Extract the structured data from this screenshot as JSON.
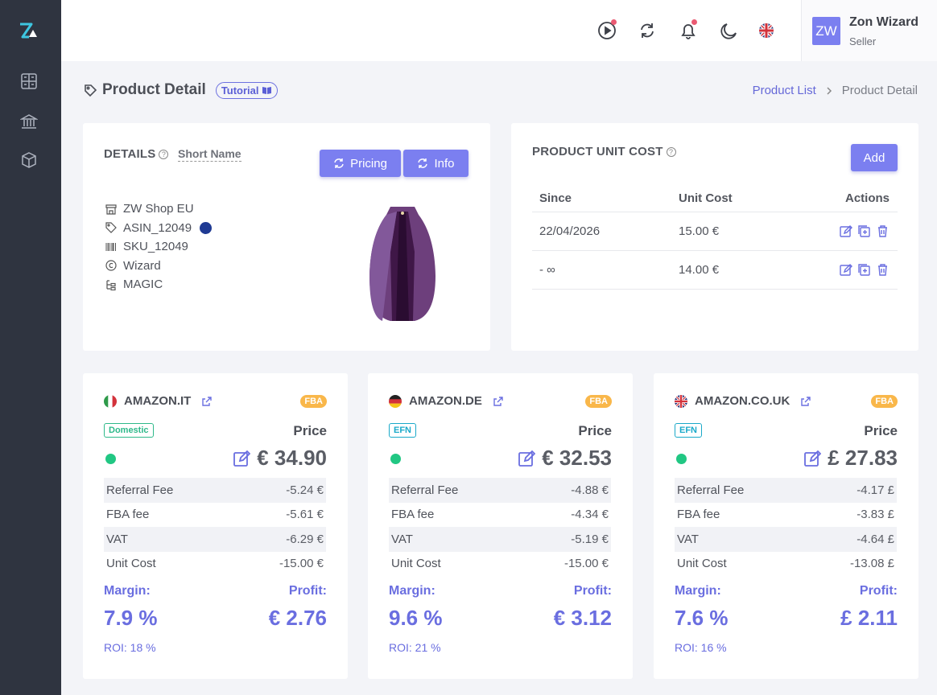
{
  "sidebar": {
    "logo": "logo-icon",
    "items": [
      "dashboard-icon",
      "bank-icon",
      "box-icon"
    ]
  },
  "header": {
    "icons": [
      "play-icon",
      "sync-icon",
      "bell-icon",
      "moon-icon",
      "uk-flag-icon"
    ],
    "user": {
      "initials": "ZW",
      "name": "Zon Wizard",
      "role": "Seller"
    }
  },
  "page": {
    "title": "Product Detail",
    "tutorial": "Tutorial",
    "breadcrumb": {
      "link": "Product List",
      "current": "Product Detail"
    }
  },
  "details": {
    "title": "DETAILS",
    "short_name": "Short Name",
    "pricing_label": "Pricing",
    "info_label": "Info",
    "shop": "ZW Shop EU",
    "asin": "ASIN_12049",
    "sku": "SKU_12049",
    "brand": "Wizard",
    "category": "MAGIC"
  },
  "unit_cost": {
    "title": "PRODUCT UNIT COST",
    "add_label": "Add",
    "columns": [
      "Since",
      "Unit Cost",
      "Actions"
    ],
    "rows": [
      {
        "since": "22/04/2026",
        "cost": "15.00 €"
      },
      {
        "since": "- ∞",
        "cost": "14.00 €"
      }
    ]
  },
  "marketplaces": [
    {
      "name": "AMAZON.IT",
      "flag": "it",
      "fulfillment": "FBA",
      "tag": "Domestic",
      "price_label": "Price",
      "price": "€ 34.90",
      "fees": [
        {
          "label": "Referral Fee",
          "value": "-5.24 €"
        },
        {
          "label": "FBA fee",
          "value": "-5.61 €"
        },
        {
          "label": "VAT",
          "value": "-6.29 €"
        },
        {
          "label": "Unit Cost",
          "value": "-15.00 €"
        }
      ],
      "margin_label": "Margin:",
      "profit_label": "Profit:",
      "margin": "7.9 %",
      "profit": "€ 2.76",
      "roi": "ROI: 18 %"
    },
    {
      "name": "AMAZON.DE",
      "flag": "de",
      "fulfillment": "FBA",
      "tag": "EFN",
      "price_label": "Price",
      "price": "€ 32.53",
      "fees": [
        {
          "label": "Referral Fee",
          "value": "-4.88 €"
        },
        {
          "label": "FBA fee",
          "value": "-4.34 €"
        },
        {
          "label": "VAT",
          "value": "-5.19 €"
        },
        {
          "label": "Unit Cost",
          "value": "-15.00 €"
        }
      ],
      "margin_label": "Margin:",
      "profit_label": "Profit:",
      "margin": "9.6 %",
      "profit": "€ 3.12",
      "roi": "ROI: 21 %"
    },
    {
      "name": "AMAZON.CO.UK",
      "flag": "uk",
      "fulfillment": "FBA",
      "tag": "EFN",
      "price_label": "Price",
      "price": "£ 27.83",
      "fees": [
        {
          "label": "Referral Fee",
          "value": "-4.17 £"
        },
        {
          "label": "FBA fee",
          "value": "-3.83 £"
        },
        {
          "label": "VAT",
          "value": "-4.64 £"
        },
        {
          "label": "Unit Cost",
          "value": "-13.08 £"
        }
      ],
      "margin_label": "Margin:",
      "profit_label": "Profit:",
      "margin": "7.6 %",
      "profit": "£ 2.11",
      "roi": "ROI: 16 %"
    }
  ],
  "colors": {
    "accent": "#7b7ff0",
    "sidebar": "#2f3440",
    "fba": "#f9b74a",
    "domestic": "#2eb98a",
    "efn": "#1aa9c9",
    "status": "#21c783"
  }
}
